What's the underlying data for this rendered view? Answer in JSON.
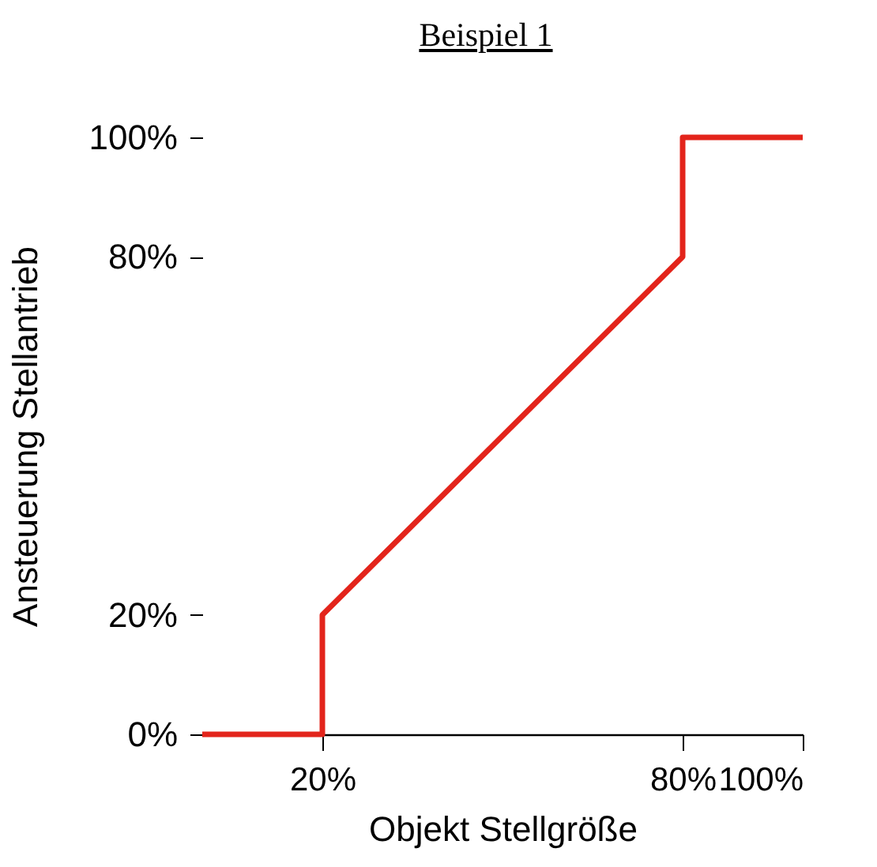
{
  "chart_data": {
    "type": "line",
    "title": "Beispiel 1",
    "xlabel": "Objekt Stellgröße",
    "ylabel": "Ansteuerung Stellantrieb",
    "x": [
      0,
      20,
      20,
      80,
      80,
      100
    ],
    "series": [
      {
        "color": "#e3241b",
        "values": [
          0,
          0,
          20,
          80,
          100,
          100
        ]
      }
    ],
    "xlim": [
      0,
      100
    ],
    "xticks": [
      {
        "value": 20,
        "label": "20%"
      },
      {
        "value": 80,
        "label": "80%"
      },
      {
        "value": 100,
        "label": "100%"
      }
    ],
    "ylim": [
      0,
      100
    ],
    "yticks": [
      {
        "value": 0,
        "label": "0%"
      },
      {
        "value": 20,
        "label": "20%"
      },
      {
        "value": 80,
        "label": "80%"
      },
      {
        "value": 100,
        "label": "100%"
      }
    ],
    "grid": false,
    "marker": "none",
    "line_style": "solid"
  }
}
